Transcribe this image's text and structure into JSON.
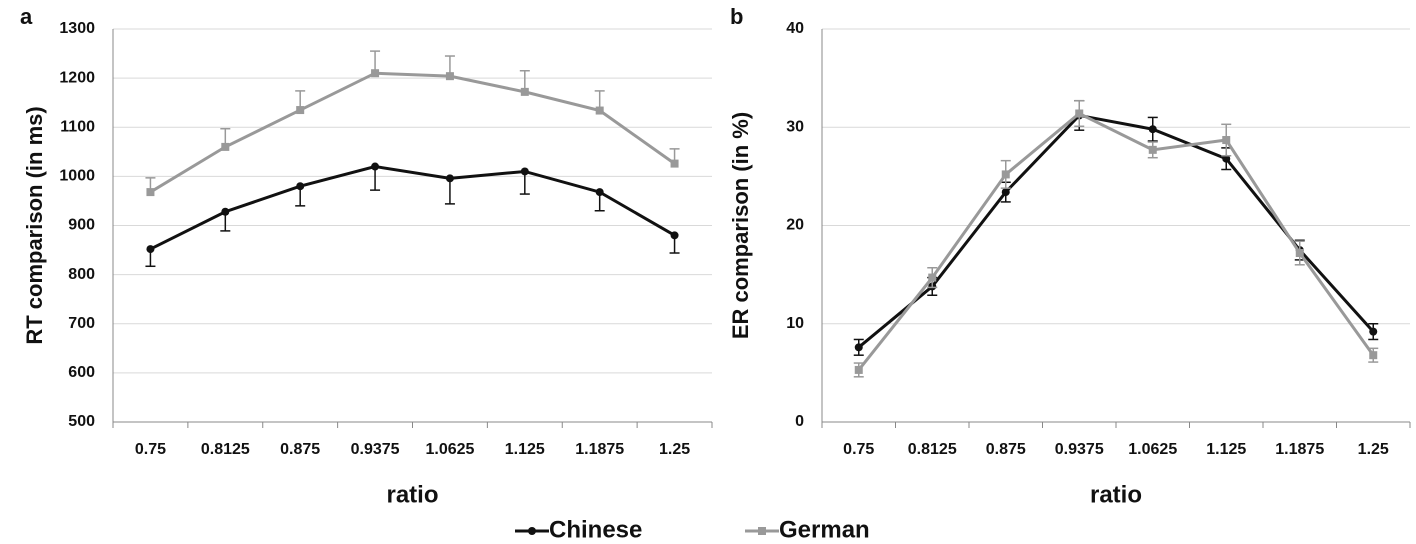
{
  "chart_data": [
    {
      "type": "line",
      "panel_label": "a",
      "xlabel": "ratio",
      "ylabel": "RT comparison (in ms)",
      "categories": [
        "0.75",
        "0.8125",
        "0.875",
        "0.9375",
        "1.0625",
        "1.125",
        "1.1875",
        "1.25"
      ],
      "ylim": [
        500,
        1300
      ],
      "yticks": [
        500,
        600,
        700,
        800,
        900,
        1000,
        1100,
        1200,
        1300
      ],
      "grid": true,
      "series": [
        {
          "name": "Chinese",
          "color": "#111111",
          "marker": "circle",
          "error_side": "down",
          "values": [
            852,
            928,
            980,
            1020,
            996,
            1010,
            968,
            880
          ],
          "errors": [
            35,
            39,
            40,
            48,
            52,
            46,
            38,
            36
          ]
        },
        {
          "name": "German",
          "color": "#999999",
          "marker": "square",
          "error_side": "up",
          "values": [
            968,
            1060,
            1135,
            1210,
            1204,
            1172,
            1134,
            1026
          ],
          "errors": [
            29,
            37,
            39,
            45,
            41,
            43,
            40,
            30
          ]
        }
      ]
    },
    {
      "type": "line",
      "panel_label": "b",
      "xlabel": "ratio",
      "ylabel": "ER comparison (in %)",
      "categories": [
        "0.75",
        "0.8125",
        "0.875",
        "0.9375",
        "1.0625",
        "1.125",
        "1.1875",
        "1.25"
      ],
      "ylim": [
        0,
        40
      ],
      "yticks": [
        0,
        10,
        20,
        30,
        40
      ],
      "grid": true,
      "series": [
        {
          "color": "#111111",
          "marker": "circle",
          "error_side": "both",
          "values": [
            7.6,
            13.8,
            23.4,
            31.2,
            29.8,
            26.8,
            17.5,
            9.2
          ],
          "errors": [
            0.8,
            0.9,
            1.0,
            1.5,
            1.2,
            1.1,
            1.0,
            0.8
          ]
        },
        {
          "color": "#999999",
          "marker": "square",
          "error_side": "both",
          "values": [
            5.3,
            14.7,
            25.2,
            31.4,
            27.7,
            28.7,
            17.2,
            6.8
          ],
          "errors": [
            0.7,
            1.0,
            1.4,
            1.3,
            0.8,
            1.6,
            1.2,
            0.7
          ]
        }
      ]
    }
  ]
}
